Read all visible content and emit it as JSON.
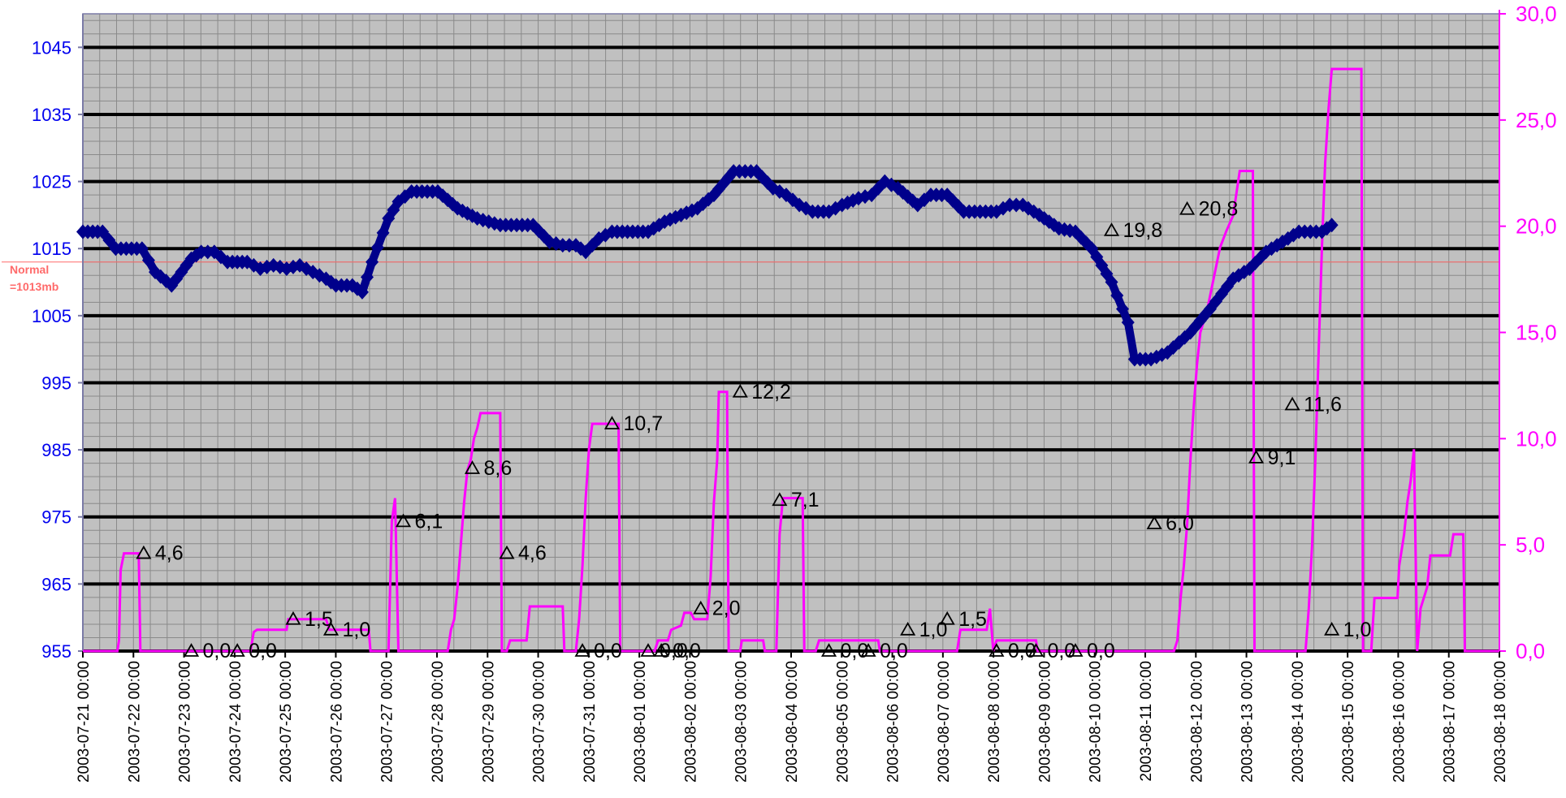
{
  "chart_data": {
    "type": "line",
    "title": "",
    "xlabel": "",
    "ylabel": "",
    "x_tick_labels": [
      "2003-07-21 00:00",
      "2003-07-22 00:00",
      "2003-07-23 00:00",
      "2003-07-24 00:00",
      "2003-07-25 00:00",
      "2003-07-26 00:00",
      "2003-07-27 00:00",
      "2003-07-28 00:00",
      "2003-07-29 00:00",
      "2003-07-30 00:00",
      "2003-07-31 00:00",
      "2003-08-01 00:00",
      "2003-08-02 00:00",
      "2003-08-03 00:00",
      "2003-08-04 00:00",
      "2003-08-05 00:00",
      "2003-08-06 00:00",
      "2003-08-07 00:00",
      "2003-08-08 00:00",
      "2003-08-09 00:00",
      "2003-08-10 00:00",
      "2003-08-11 00:00",
      "2003-08-12 00:00",
      "2003-08-13 00:00",
      "2003-08-14 00:00",
      "2003-08-15 00:00",
      "2003-08-16 00:00",
      "2003-08-17 00:00",
      "2003-08-18 00:00"
    ],
    "x_range_days": [
      0,
      28
    ],
    "y_left": {
      "ticks": [
        "955",
        "965",
        "975",
        "985",
        "995",
        "1005",
        "1015",
        "1025",
        "1035",
        "1045"
      ],
      "ylim": [
        955,
        1050
      ],
      "color": "#0000ee"
    },
    "y_right": {
      "ticks": [
        "0,0",
        "5,0",
        "10,0",
        "15,0",
        "20,0",
        "25,0",
        "30,0"
      ],
      "ylim": [
        0,
        30
      ],
      "color": "#ff00ff"
    },
    "grid": true,
    "plot_background": "#c0c0c0",
    "reference_line": {
      "value": 1013,
      "label_line1": "Normal",
      "label_line2": "=1013mb",
      "color": "#ff6a6a"
    },
    "series": [
      {
        "axis": "left",
        "color": "#00008b",
        "marker": "diamond",
        "points": [
          [
            0,
            1017.5
          ],
          [
            0.6,
            1017.5
          ],
          [
            1,
            1015
          ],
          [
            1.8,
            1015
          ],
          [
            2.2,
            1011.5
          ],
          [
            2.7,
            1009.5
          ],
          [
            3.3,
            1013.5
          ],
          [
            3.6,
            1014.5
          ],
          [
            4,
            1014.5
          ],
          [
            4.4,
            1013
          ],
          [
            5,
            1013
          ],
          [
            5.4,
            1012
          ],
          [
            5.8,
            1012.5
          ],
          [
            6.2,
            1012
          ],
          [
            6.6,
            1012.5
          ],
          [
            7,
            1011.5
          ],
          [
            7.4,
            1010.5
          ],
          [
            7.7,
            1009.5
          ],
          [
            8.2,
            1009.5
          ],
          [
            8.5,
            1008.5
          ],
          [
            8.8,
            1013
          ],
          [
            9.3,
            1019.5
          ],
          [
            9.6,
            1022
          ],
          [
            10,
            1023.5
          ],
          [
            10.8,
            1023.5
          ],
          [
            11.4,
            1021
          ],
          [
            12,
            1019.5
          ],
          [
            12.7,
            1018.5
          ],
          [
            13.7,
            1018.5
          ],
          [
            14.2,
            1016
          ],
          [
            14.6,
            1015.5
          ],
          [
            15,
            1015.5
          ],
          [
            15.3,
            1014.5
          ],
          [
            15.7,
            1016.5
          ],
          [
            16.1,
            1017.5
          ],
          [
            17.2,
            1017.5
          ],
          [
            17.7,
            1019
          ],
          [
            18.2,
            1020
          ],
          [
            18.7,
            1021
          ],
          [
            19.2,
            1023
          ],
          [
            19.8,
            1026.5
          ],
          [
            20.5,
            1026.5
          ],
          [
            21,
            1024
          ],
          [
            21.4,
            1023
          ],
          [
            21.8,
            1021.5
          ],
          [
            22.2,
            1020.5
          ],
          [
            22.7,
            1020.5
          ],
          [
            23.1,
            1021.5
          ],
          [
            23.6,
            1022.5
          ],
          [
            24,
            1023
          ],
          [
            24.4,
            1025
          ],
          [
            24.8,
            1024
          ],
          [
            25.4,
            1021.5
          ],
          [
            25.8,
            1023
          ],
          [
            26.3,
            1023
          ],
          [
            26.8,
            1020.5
          ],
          [
            27.8,
            1020.5
          ],
          [
            28.2,
            1021.5
          ],
          [
            28.6,
            1021.5
          ],
          [
            29.1,
            1020
          ],
          [
            29.7,
            1018
          ],
          [
            30.2,
            1017.5
          ],
          [
            30.7,
            1015
          ],
          [
            31.3,
            1010
          ],
          [
            31.8,
            1004
          ],
          [
            32,
            998.5
          ],
          [
            32.5,
            998.5
          ],
          [
            33,
            999.5
          ],
          [
            33.7,
            1002.5
          ],
          [
            34.3,
            1006
          ],
          [
            35,
            1010.5
          ],
          [
            35.5,
            1012
          ],
          [
            36,
            1014.5
          ],
          [
            36.5,
            1016
          ],
          [
            37,
            1017.5
          ],
          [
            37.7,
            1017.5
          ],
          [
            38,
            1018.5
          ]
        ]
      },
      {
        "axis": "right",
        "color": "#ff00ff",
        "style": "step",
        "points": [
          [
            0,
            0
          ],
          [
            1.05,
            0
          ],
          [
            1.1,
            0.5
          ],
          [
            1.15,
            3.8
          ],
          [
            1.25,
            4.6
          ],
          [
            1.7,
            4.6
          ],
          [
            1.75,
            0
          ],
          [
            5.1,
            0
          ],
          [
            5.2,
            0.9
          ],
          [
            5.3,
            1.0
          ],
          [
            5.5,
            1.0
          ],
          [
            6.2,
            1.0
          ],
          [
            6.25,
            1.5
          ],
          [
            7.4,
            1.5
          ],
          [
            7.5,
            1.0
          ],
          [
            8.7,
            1.0
          ],
          [
            8.75,
            0
          ],
          [
            9.3,
            0
          ],
          [
            9.4,
            6.1
          ],
          [
            9.5,
            7.2
          ],
          [
            9.6,
            0
          ],
          [
            11.1,
            0
          ],
          [
            11.2,
            1.0
          ],
          [
            11.3,
            1.5
          ],
          [
            11.4,
            3.0
          ],
          [
            11.5,
            5.0
          ],
          [
            11.6,
            7.0
          ],
          [
            11.7,
            8.5
          ],
          [
            11.8,
            9.0
          ],
          [
            11.9,
            10.0
          ],
          [
            12.0,
            10.5
          ],
          [
            12.1,
            11.2
          ],
          [
            12.7,
            11.2
          ],
          [
            12.75,
            0
          ],
          [
            12.9,
            0
          ],
          [
            13.0,
            0.5
          ],
          [
            13.5,
            0.5
          ],
          [
            13.6,
            2.1
          ],
          [
            14.6,
            2.1
          ],
          [
            14.65,
            0
          ],
          [
            15,
            0
          ],
          [
            15.1,
            1.5
          ],
          [
            15.2,
            4.0
          ],
          [
            15.3,
            7.2
          ],
          [
            15.4,
            9.5
          ],
          [
            15.5,
            10.7
          ],
          [
            16.3,
            10.7
          ],
          [
            16.35,
            0
          ],
          [
            17.4,
            0
          ],
          [
            17.5,
            0.5
          ],
          [
            17.8,
            0.5
          ],
          [
            17.9,
            1.0
          ],
          [
            18.2,
            1.2
          ],
          [
            18.3,
            1.8
          ],
          [
            18.5,
            1.8
          ],
          [
            18.6,
            1.5
          ],
          [
            19.0,
            1.5
          ],
          [
            19.1,
            3.5
          ],
          [
            19.2,
            7.0
          ],
          [
            19.3,
            9.0
          ],
          [
            19.35,
            12.2
          ],
          [
            19.6,
            12.2
          ],
          [
            19.65,
            0
          ],
          [
            20,
            0
          ],
          [
            20.05,
            0.5
          ],
          [
            20.7,
            0.5
          ],
          [
            20.75,
            0
          ],
          [
            21.1,
            0
          ],
          [
            21.2,
            5.5
          ],
          [
            21.3,
            7.2
          ],
          [
            21.9,
            7.2
          ],
          [
            21.95,
            0
          ],
          [
            22.3,
            0
          ],
          [
            22.4,
            0.5
          ],
          [
            24.2,
            0.5
          ],
          [
            24.25,
            0
          ],
          [
            26.6,
            0
          ],
          [
            26.7,
            1.0
          ],
          [
            26.8,
            1.0
          ],
          [
            27.5,
            1.0
          ],
          [
            27.6,
            2.0
          ],
          [
            27.7,
            0
          ],
          [
            27.8,
            0.5
          ],
          [
            28.2,
            0.5
          ],
          [
            29.0,
            0.5
          ],
          [
            29.05,
            0
          ],
          [
            33.2,
            0
          ],
          [
            33.3,
            0.5
          ],
          [
            33.4,
            2.5
          ],
          [
            33.5,
            4.0
          ],
          [
            33.6,
            6.0
          ],
          [
            33.7,
            9.0
          ],
          [
            33.8,
            11.5
          ],
          [
            33.9,
            13.5
          ],
          [
            34.0,
            15.0
          ],
          [
            34.2,
            16.0
          ],
          [
            34.4,
            17.5
          ],
          [
            34.6,
            19.0
          ],
          [
            34.8,
            19.8
          ],
          [
            35.0,
            20.5
          ],
          [
            35.2,
            22.6
          ],
          [
            35.6,
            22.6
          ],
          [
            35.65,
            0
          ],
          [
            37.2,
            0
          ],
          [
            37.3,
            2.0
          ],
          [
            37.4,
            5.0
          ],
          [
            37.5,
            9.0
          ],
          [
            37.6,
            14.0
          ],
          [
            37.7,
            19.0
          ],
          [
            37.8,
            23.0
          ],
          [
            37.9,
            25.5
          ],
          [
            38.0,
            27.4
          ],
          [
            38.9,
            27.4
          ],
          [
            38.95,
            0
          ],
          [
            39.2,
            0
          ],
          [
            39.3,
            2.5
          ],
          [
            40.0,
            2.5
          ],
          [
            40.05,
            4.0
          ],
          [
            40.2,
            5.5
          ],
          [
            40.3,
            7.0
          ],
          [
            40.4,
            8.0
          ],
          [
            40.5,
            9.5
          ],
          [
            40.6,
            0
          ],
          [
            40.7,
            2.0
          ],
          [
            40.9,
            3.0
          ],
          [
            41.0,
            4.5
          ],
          [
            41.6,
            4.5
          ],
          [
            41.7,
            5.5
          ],
          [
            42.0,
            5.5
          ],
          [
            42.05,
            0
          ],
          [
            43.1,
            0
          ]
        ]
      }
    ],
    "data_labels": [
      {
        "x": 1.85,
        "value": 4.6,
        "text": "4,6"
      },
      {
        "x": 3.3,
        "value": 0.0,
        "text": "0,0"
      },
      {
        "x": 4.7,
        "value": 0.0,
        "text": "0,0"
      },
      {
        "x": 6.4,
        "value": 1.5,
        "text": "1,5"
      },
      {
        "x": 7.55,
        "value": 1.0,
        "text": "1,0"
      },
      {
        "x": 9.75,
        "value": 6.1,
        "text": "6,1"
      },
      {
        "x": 11.85,
        "value": 8.6,
        "text": "8,6"
      },
      {
        "x": 12.9,
        "value": 4.6,
        "text": "4,6"
      },
      {
        "x": 15.2,
        "value": 0.0,
        "text": "0,0"
      },
      {
        "x": 16.1,
        "value": 10.7,
        "text": "10,7"
      },
      {
        "x": 17.2,
        "value": 0.0,
        "text": "0,0"
      },
      {
        "x": 17.6,
        "value": 0.0,
        "text": "0,0"
      },
      {
        "x": 18.8,
        "value": 2.0,
        "text": "2,0"
      },
      {
        "x": 20.0,
        "value": 12.2,
        "text": "12,2"
      },
      {
        "x": 21.2,
        "value": 7.1,
        "text": "7,1"
      },
      {
        "x": 22.7,
        "value": 0.0,
        "text": "0,0"
      },
      {
        "x": 23.9,
        "value": 0.0,
        "text": "0,0"
      },
      {
        "x": 25.1,
        "value": 1.0,
        "text": "1,0"
      },
      {
        "x": 26.3,
        "value": 1.5,
        "text": "1,5"
      },
      {
        "x": 27.8,
        "value": 0.0,
        "text": "0,0"
      },
      {
        "x": 29.0,
        "value": 0.0,
        "text": "0,0"
      },
      {
        "x": 30.2,
        "value": 0.0,
        "text": "0,0"
      },
      {
        "x": 31.3,
        "value": 19.8,
        "text": "19,8"
      },
      {
        "x": 32.6,
        "value": 6.0,
        "text": "6,0"
      },
      {
        "x": 33.6,
        "value": 20.8,
        "text": "20,8"
      },
      {
        "x": 35.7,
        "value": 9.1,
        "text": "9,1"
      },
      {
        "x": 36.8,
        "value": 11.6,
        "text": "11,6"
      },
      {
        "x": 38.0,
        "value": 1.0,
        "text": "1,0"
      }
    ]
  }
}
